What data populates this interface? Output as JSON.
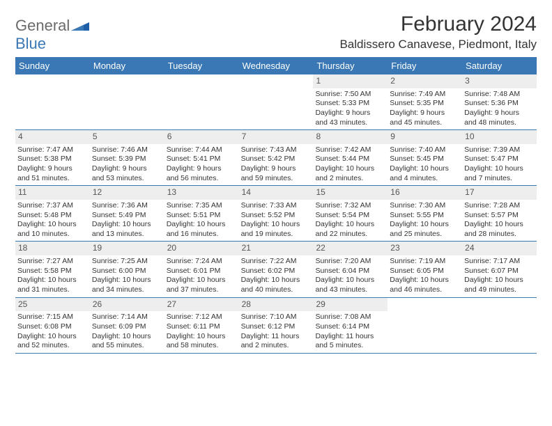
{
  "logo": {
    "general": "General",
    "blue": "Blue"
  },
  "title": "February 2024",
  "location": "Baldissero Canavese, Piedmont, Italy",
  "colors": {
    "header_bg": "#3a78b5",
    "header_text": "#ffffff",
    "daynum_bg": "#eeeeee",
    "text": "#333333",
    "logo_gray": "#6b6b6b",
    "logo_blue": "#3a78b5",
    "border": "#3a78b5"
  },
  "weekdays": [
    "Sunday",
    "Monday",
    "Tuesday",
    "Wednesday",
    "Thursday",
    "Friday",
    "Saturday"
  ],
  "weeks": [
    [
      null,
      null,
      null,
      null,
      {
        "n": "1",
        "sr": "Sunrise: 7:50 AM",
        "ss": "Sunset: 5:33 PM",
        "d1": "Daylight: 9 hours",
        "d2": "and 43 minutes."
      },
      {
        "n": "2",
        "sr": "Sunrise: 7:49 AM",
        "ss": "Sunset: 5:35 PM",
        "d1": "Daylight: 9 hours",
        "d2": "and 45 minutes."
      },
      {
        "n": "3",
        "sr": "Sunrise: 7:48 AM",
        "ss": "Sunset: 5:36 PM",
        "d1": "Daylight: 9 hours",
        "d2": "and 48 minutes."
      }
    ],
    [
      {
        "n": "4",
        "sr": "Sunrise: 7:47 AM",
        "ss": "Sunset: 5:38 PM",
        "d1": "Daylight: 9 hours",
        "d2": "and 51 minutes."
      },
      {
        "n": "5",
        "sr": "Sunrise: 7:46 AM",
        "ss": "Sunset: 5:39 PM",
        "d1": "Daylight: 9 hours",
        "d2": "and 53 minutes."
      },
      {
        "n": "6",
        "sr": "Sunrise: 7:44 AM",
        "ss": "Sunset: 5:41 PM",
        "d1": "Daylight: 9 hours",
        "d2": "and 56 minutes."
      },
      {
        "n": "7",
        "sr": "Sunrise: 7:43 AM",
        "ss": "Sunset: 5:42 PM",
        "d1": "Daylight: 9 hours",
        "d2": "and 59 minutes."
      },
      {
        "n": "8",
        "sr": "Sunrise: 7:42 AM",
        "ss": "Sunset: 5:44 PM",
        "d1": "Daylight: 10 hours",
        "d2": "and 2 minutes."
      },
      {
        "n": "9",
        "sr": "Sunrise: 7:40 AM",
        "ss": "Sunset: 5:45 PM",
        "d1": "Daylight: 10 hours",
        "d2": "and 4 minutes."
      },
      {
        "n": "10",
        "sr": "Sunrise: 7:39 AM",
        "ss": "Sunset: 5:47 PM",
        "d1": "Daylight: 10 hours",
        "d2": "and 7 minutes."
      }
    ],
    [
      {
        "n": "11",
        "sr": "Sunrise: 7:37 AM",
        "ss": "Sunset: 5:48 PM",
        "d1": "Daylight: 10 hours",
        "d2": "and 10 minutes."
      },
      {
        "n": "12",
        "sr": "Sunrise: 7:36 AM",
        "ss": "Sunset: 5:49 PM",
        "d1": "Daylight: 10 hours",
        "d2": "and 13 minutes."
      },
      {
        "n": "13",
        "sr": "Sunrise: 7:35 AM",
        "ss": "Sunset: 5:51 PM",
        "d1": "Daylight: 10 hours",
        "d2": "and 16 minutes."
      },
      {
        "n": "14",
        "sr": "Sunrise: 7:33 AM",
        "ss": "Sunset: 5:52 PM",
        "d1": "Daylight: 10 hours",
        "d2": "and 19 minutes."
      },
      {
        "n": "15",
        "sr": "Sunrise: 7:32 AM",
        "ss": "Sunset: 5:54 PM",
        "d1": "Daylight: 10 hours",
        "d2": "and 22 minutes."
      },
      {
        "n": "16",
        "sr": "Sunrise: 7:30 AM",
        "ss": "Sunset: 5:55 PM",
        "d1": "Daylight: 10 hours",
        "d2": "and 25 minutes."
      },
      {
        "n": "17",
        "sr": "Sunrise: 7:28 AM",
        "ss": "Sunset: 5:57 PM",
        "d1": "Daylight: 10 hours",
        "d2": "and 28 minutes."
      }
    ],
    [
      {
        "n": "18",
        "sr": "Sunrise: 7:27 AM",
        "ss": "Sunset: 5:58 PM",
        "d1": "Daylight: 10 hours",
        "d2": "and 31 minutes."
      },
      {
        "n": "19",
        "sr": "Sunrise: 7:25 AM",
        "ss": "Sunset: 6:00 PM",
        "d1": "Daylight: 10 hours",
        "d2": "and 34 minutes."
      },
      {
        "n": "20",
        "sr": "Sunrise: 7:24 AM",
        "ss": "Sunset: 6:01 PM",
        "d1": "Daylight: 10 hours",
        "d2": "and 37 minutes."
      },
      {
        "n": "21",
        "sr": "Sunrise: 7:22 AM",
        "ss": "Sunset: 6:02 PM",
        "d1": "Daylight: 10 hours",
        "d2": "and 40 minutes."
      },
      {
        "n": "22",
        "sr": "Sunrise: 7:20 AM",
        "ss": "Sunset: 6:04 PM",
        "d1": "Daylight: 10 hours",
        "d2": "and 43 minutes."
      },
      {
        "n": "23",
        "sr": "Sunrise: 7:19 AM",
        "ss": "Sunset: 6:05 PM",
        "d1": "Daylight: 10 hours",
        "d2": "and 46 minutes."
      },
      {
        "n": "24",
        "sr": "Sunrise: 7:17 AM",
        "ss": "Sunset: 6:07 PM",
        "d1": "Daylight: 10 hours",
        "d2": "and 49 minutes."
      }
    ],
    [
      {
        "n": "25",
        "sr": "Sunrise: 7:15 AM",
        "ss": "Sunset: 6:08 PM",
        "d1": "Daylight: 10 hours",
        "d2": "and 52 minutes."
      },
      {
        "n": "26",
        "sr": "Sunrise: 7:14 AM",
        "ss": "Sunset: 6:09 PM",
        "d1": "Daylight: 10 hours",
        "d2": "and 55 minutes."
      },
      {
        "n": "27",
        "sr": "Sunrise: 7:12 AM",
        "ss": "Sunset: 6:11 PM",
        "d1": "Daylight: 10 hours",
        "d2": "and 58 minutes."
      },
      {
        "n": "28",
        "sr": "Sunrise: 7:10 AM",
        "ss": "Sunset: 6:12 PM",
        "d1": "Daylight: 11 hours",
        "d2": "and 2 minutes."
      },
      {
        "n": "29",
        "sr": "Sunrise: 7:08 AM",
        "ss": "Sunset: 6:14 PM",
        "d1": "Daylight: 11 hours",
        "d2": "and 5 minutes."
      },
      null,
      null
    ]
  ]
}
